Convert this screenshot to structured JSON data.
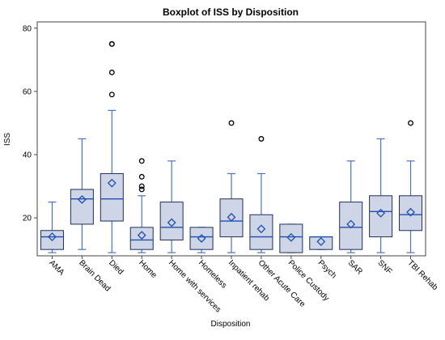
{
  "chart_data": {
    "type": "boxplot",
    "title": "Boxplot of ISS by Disposition",
    "xlabel": "Disposition",
    "ylabel": "ISS",
    "ylim": [
      8,
      82
    ],
    "yticks": [
      20,
      40,
      60,
      80
    ],
    "grid": false,
    "colors": {
      "box_fill": "#cdd5e6",
      "box_stroke": "#1f2f5c",
      "whisker": "#4a72c8",
      "median": "#1f4fb0",
      "mean_marker": "#1f4fb0",
      "outlier": "#000000"
    },
    "categories": [
      "AMA",
      "Brain Dead",
      "Died",
      "Home",
      "Home with services",
      "Homeless",
      "Inpatient rehab",
      "Other Acute Care",
      "Police Custody",
      "Psych",
      "SAR",
      "SNF",
      "TBI Rehab"
    ],
    "boxes": [
      {
        "q1": 10,
        "median": 14,
        "q3": 16,
        "min": 9,
        "max": 25,
        "mean": 14,
        "outliers": []
      },
      {
        "q1": 18,
        "median": 26,
        "q3": 29,
        "min": 10,
        "max": 45,
        "mean": 25.8,
        "outliers": []
      },
      {
        "q1": 19,
        "median": 26,
        "q3": 34,
        "min": 9,
        "max": 54,
        "mean": 31,
        "outliers": [
          59,
          66,
          75,
          75
        ]
      },
      {
        "q1": 10,
        "median": 13,
        "q3": 17,
        "min": 9,
        "max": 27,
        "mean": 14.5,
        "outliers": [
          29,
          30,
          33,
          38
        ]
      },
      {
        "q1": 13,
        "median": 17,
        "q3": 25,
        "min": 9,
        "max": 38,
        "mean": 18.5,
        "outliers": []
      },
      {
        "q1": 10,
        "median": 14,
        "q3": 17,
        "min": 9,
        "max": 17,
        "mean": 13.5,
        "outliers": []
      },
      {
        "q1": 14,
        "median": 19,
        "q3": 26,
        "min": 9,
        "max": 34,
        "mean": 20.2,
        "outliers": [
          50
        ]
      },
      {
        "q1": 10,
        "median": 14,
        "q3": 21,
        "min": 9,
        "max": 34,
        "mean": 16.5,
        "outliers": [
          45
        ]
      },
      {
        "q1": 9,
        "median": 14,
        "q3": 18,
        "min": 9,
        "max": 18,
        "mean": 13.8,
        "outliers": []
      },
      {
        "q1": 10,
        "median": 14,
        "q3": 14,
        "min": 10,
        "max": 14,
        "mean": 12.5,
        "outliers": []
      },
      {
        "q1": 10,
        "median": 17,
        "q3": 25,
        "min": 9,
        "max": 38,
        "mean": 18,
        "outliers": []
      },
      {
        "q1": 14,
        "median": 22,
        "q3": 27,
        "min": 9,
        "max": 45,
        "mean": 21.5,
        "outliers": []
      },
      {
        "q1": 16,
        "median": 21,
        "q3": 27,
        "min": 9,
        "max": 38,
        "mean": 21.8,
        "outliers": [
          50
        ]
      }
    ]
  }
}
